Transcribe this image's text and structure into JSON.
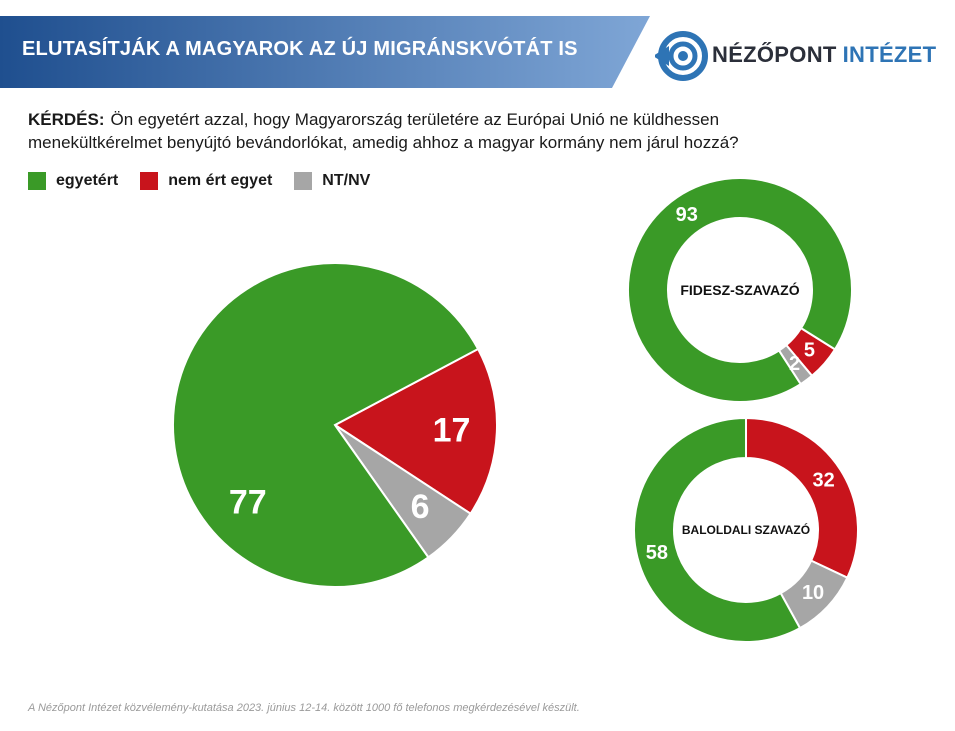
{
  "header": {
    "title": "ELUTASÍTJÁK A MAGYAROK AZ ÚJ MIGRÁNSKVÓTÁT IS"
  },
  "logo": {
    "word1": "NÉZŐPONT",
    "word2": "INTÉZET",
    "icon": "target-arrow-icon"
  },
  "question": {
    "label": "KÉRDÉS:",
    "text": "Ön egyetért azzal, hogy Magyarország területére az Európai Unió ne küldhessen menekültkérelmet benyújtó bevándorlókat, amedig ahhoz a magyar kormány nem járul hozzá?"
  },
  "legend": [
    {
      "label": "egyetért",
      "color": "#3a9a27"
    },
    {
      "label": "nem ért egyet",
      "color": "#c8141c"
    },
    {
      "label": "NT/NV",
      "color": "#a6a6a6"
    }
  ],
  "colors": {
    "banner_start": "#1f4f8f",
    "banner_end": "#7fa6d6",
    "agree": "#3a9a27",
    "disagree": "#c8141c",
    "dk": "#a6a6a6"
  },
  "chart_data": [
    {
      "type": "pie",
      "title": "",
      "categories": [
        "egyetért",
        "nem ért egyet",
        "NT/NV"
      ],
      "values": [
        77,
        17,
        6
      ]
    },
    {
      "type": "pie",
      "subtype": "donut",
      "title": "FIDESZ-SZAVAZÓ",
      "categories": [
        "egyetért",
        "nem ért egyet",
        "NT/NV"
      ],
      "values": [
        93,
        5,
        2
      ]
    },
    {
      "type": "pie",
      "subtype": "donut",
      "title": "BALOLDALI SZAVAZÓ",
      "categories": [
        "egyetért",
        "nem ért egyet",
        "NT/NV"
      ],
      "values": [
        58,
        32,
        10
      ]
    }
  ],
  "footnote": "A Nézőpont Intézet közvélemény-kutatása 2023. június 12-14. között 1000 fő telefonos megkérdezésével készült."
}
